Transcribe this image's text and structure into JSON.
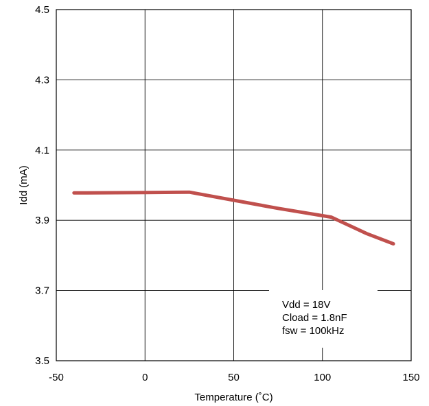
{
  "chart_data": {
    "type": "line",
    "title": "",
    "xlabel": "Temperature (˚C)",
    "ylabel": "Idd (mA)",
    "xlim": [
      -50,
      150
    ],
    "ylim": [
      3.5,
      4.5
    ],
    "x_ticks": [
      "-50",
      "0",
      "50",
      "100",
      "150"
    ],
    "y_ticks": [
      "3.5",
      "3.7",
      "3.9",
      "4.1",
      "4.3",
      "4.5"
    ],
    "grid": true,
    "legend": "none",
    "series": [
      {
        "color": "#C0504D",
        "x": [
          -40,
          0,
          25,
          50,
          75,
          105,
          125,
          140
        ],
        "y": [
          3.978,
          3.979,
          3.98,
          3.957,
          3.934,
          3.909,
          3.862,
          3.833
        ]
      }
    ],
    "annotations": [
      "Vdd = 18V",
      "Cload = 1.8nF",
      "fsw = 100kHz"
    ]
  }
}
